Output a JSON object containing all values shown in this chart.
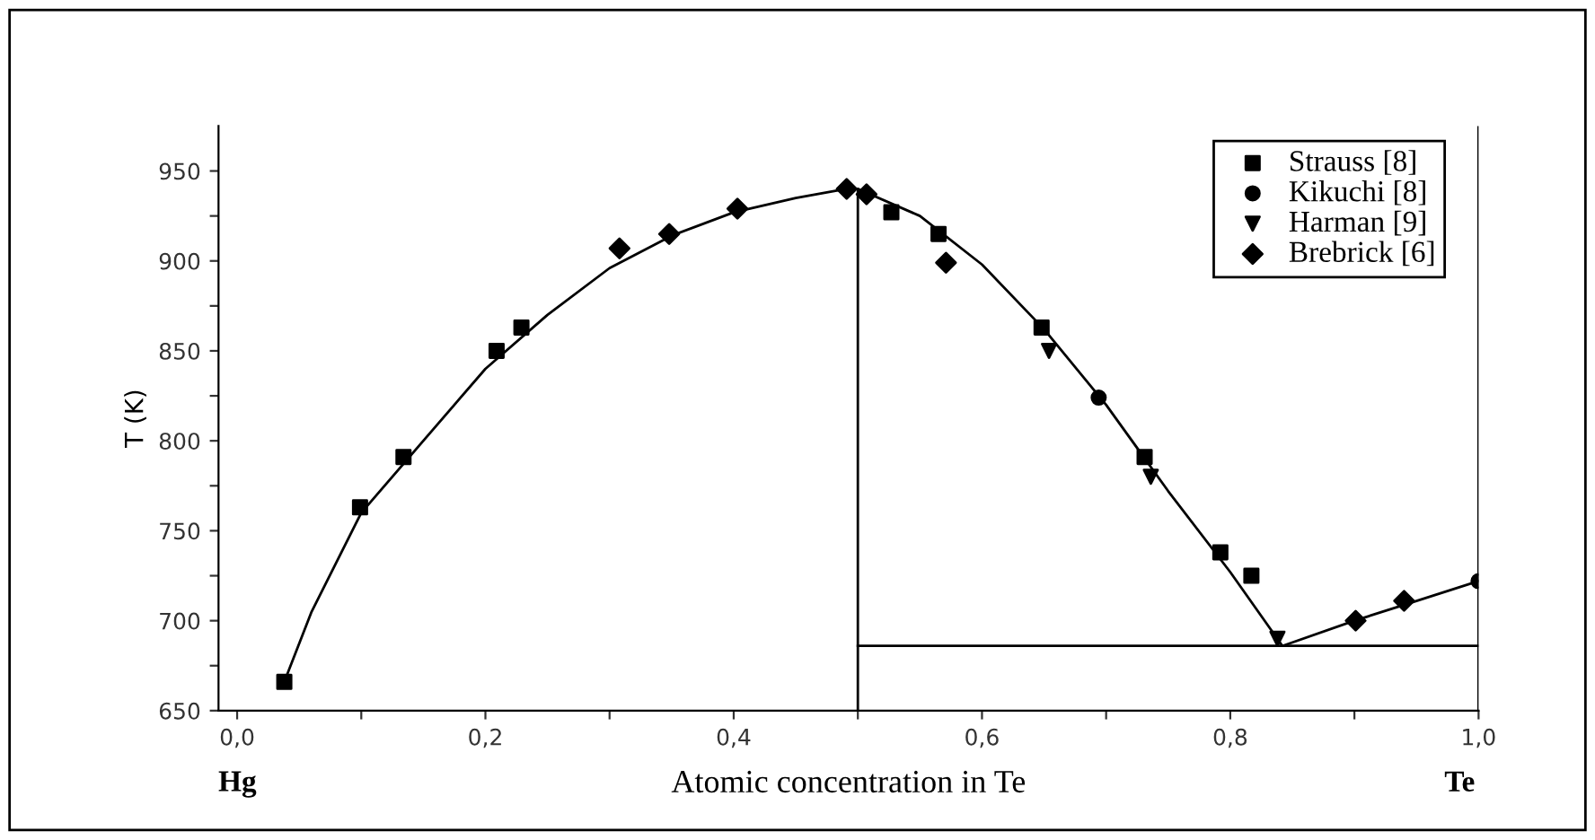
{
  "chart_data": {
    "type": "scatter",
    "xlabel": "Atomic concentration in Te",
    "ylabel": "T (K)",
    "xlim": [
      -0.015,
      1.0
    ],
    "ylim": [
      650,
      975
    ],
    "xticks": [
      {
        "value": 0.0,
        "label": "0,0"
      },
      {
        "value": 0.1,
        "label": null
      },
      {
        "value": 0.2,
        "label": "0,2"
      },
      {
        "value": 0.3,
        "label": null
      },
      {
        "value": 0.4,
        "label": "0,4"
      },
      {
        "value": 0.5,
        "label": null
      },
      {
        "value": 0.6,
        "label": "0,6"
      },
      {
        "value": 0.7,
        "label": null
      },
      {
        "value": 0.8,
        "label": "0,8"
      },
      {
        "value": 0.9,
        "label": null
      },
      {
        "value": 1.0,
        "label": "1,0"
      }
    ],
    "yticks": [
      650,
      {
        "value": 675,
        "label": null
      },
      700,
      {
        "value": 725,
        "label": null
      },
      750,
      {
        "value": 775,
        "label": null
      },
      800,
      {
        "value": 825,
        "label": null
      },
      850,
      {
        "value": 875,
        "label": null
      },
      900,
      {
        "value": 925,
        "label": null
      },
      950
    ],
    "grid": false,
    "legend": "top right",
    "series": [
      {
        "type": "line",
        "color": "#000000",
        "marker": "none",
        "x": [
          0.038,
          0.06,
          0.1,
          0.15,
          0.2,
          0.25,
          0.3,
          0.35,
          0.4,
          0.45,
          0.49,
          0.5,
          0.55,
          0.6,
          0.65,
          0.7,
          0.75,
          0.8,
          0.842,
          0.9,
          0.95,
          1.0
        ],
        "values": [
          666,
          705,
          760,
          800,
          840,
          870,
          896,
          914,
          927,
          935,
          940,
          940,
          925,
          898,
          862,
          820,
          772,
          727,
          686,
          700,
          711,
          722
        ]
      },
      {
        "type": "line",
        "color": "#000000",
        "marker": "none",
        "x": [
          0.5,
          0.5
        ],
        "values": [
          650,
          940
        ]
      },
      {
        "type": "line",
        "color": "#000000",
        "marker": "none",
        "x": [
          0.5,
          1.0
        ],
        "values": [
          686,
          686
        ]
      },
      {
        "name": "Strauss [8]",
        "color": "#000000",
        "marker": "square",
        "x": [
          0.038,
          0.099,
          0.134,
          0.209,
          0.229,
          0.527,
          0.565,
          0.648,
          0.731,
          0.792,
          0.817
        ],
        "values": [
          666,
          763,
          791,
          850,
          863,
          927,
          915,
          863,
          791,
          738,
          725
        ]
      },
      {
        "name": "Kikuchi [8]",
        "color": "#000000",
        "marker": "circle",
        "x": [
          0.694,
          1.0
        ],
        "values": [
          824,
          722
        ]
      },
      {
        "name": "Harman [9]",
        "color": "#000000",
        "marker": "triangle",
        "x": [
          0.654,
          0.736,
          0.838
        ],
        "values": [
          850,
          780,
          690
        ]
      },
      {
        "name": "Brebrick [6]",
        "color": "#000000",
        "marker": "diamond",
        "x": [
          0.308,
          0.348,
          0.403,
          0.491,
          0.507,
          0.571,
          0.901,
          0.94
        ],
        "values": [
          907,
          915,
          929,
          940,
          937,
          899,
          700,
          711
        ]
      }
    ],
    "ref_lines": [
      {
        "axis": "x",
        "value": 1.0,
        "color": "#000000",
        "line_style": "solid"
      }
    ],
    "annotations": [
      "Hg",
      "Te"
    ]
  }
}
